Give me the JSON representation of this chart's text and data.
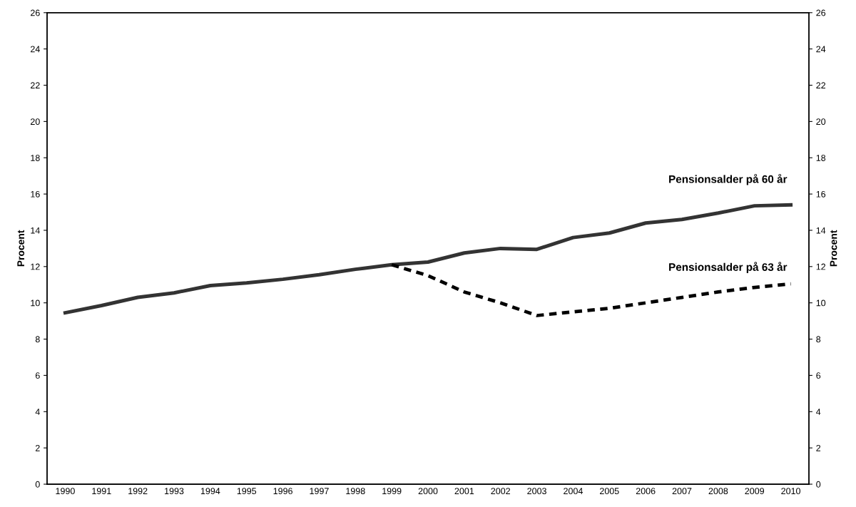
{
  "chart_data": {
    "type": "line",
    "ylabel": "Procent",
    "y2label": "Procent",
    "categories": [
      "1990",
      "1991",
      "1992",
      "1993",
      "1994",
      "1995",
      "1996",
      "1997",
      "1998",
      "1999",
      "2000",
      "2001",
      "2002",
      "2003",
      "2004",
      "2005",
      "2006",
      "2007",
      "2008",
      "2009",
      "2010"
    ],
    "series": [
      {
        "name": "Pensionsalder på 60 år",
        "color": "#333333",
        "line_style": "solid",
        "values": [
          9.45,
          9.85,
          10.3,
          10.55,
          10.95,
          11.1,
          11.3,
          11.55,
          11.85,
          12.1,
          12.25,
          12.75,
          13.0,
          12.95,
          13.6,
          13.85,
          14.4,
          14.6,
          14.95,
          15.35,
          15.4
        ]
      },
      {
        "name": "Pensionsalder på 63 år",
        "color": "#000000",
        "line_style": "dashed",
        "values": [
          null,
          null,
          null,
          null,
          null,
          null,
          null,
          null,
          null,
          12.1,
          11.5,
          10.6,
          10.0,
          9.3,
          9.5,
          9.7,
          10.0,
          10.3,
          10.6,
          10.85,
          11.05
        ]
      }
    ],
    "ylim": [
      0,
      26
    ],
    "yticks": [
      0,
      2,
      4,
      6,
      8,
      10,
      12,
      14,
      16,
      18,
      20,
      22,
      24,
      26
    ],
    "y2lim": [
      0,
      26
    ],
    "y2ticks": [
      0,
      2,
      4,
      6,
      8,
      10,
      12,
      14,
      16,
      18,
      20,
      22,
      24,
      26
    ],
    "grid": false,
    "legend": false,
    "marker": "none"
  }
}
